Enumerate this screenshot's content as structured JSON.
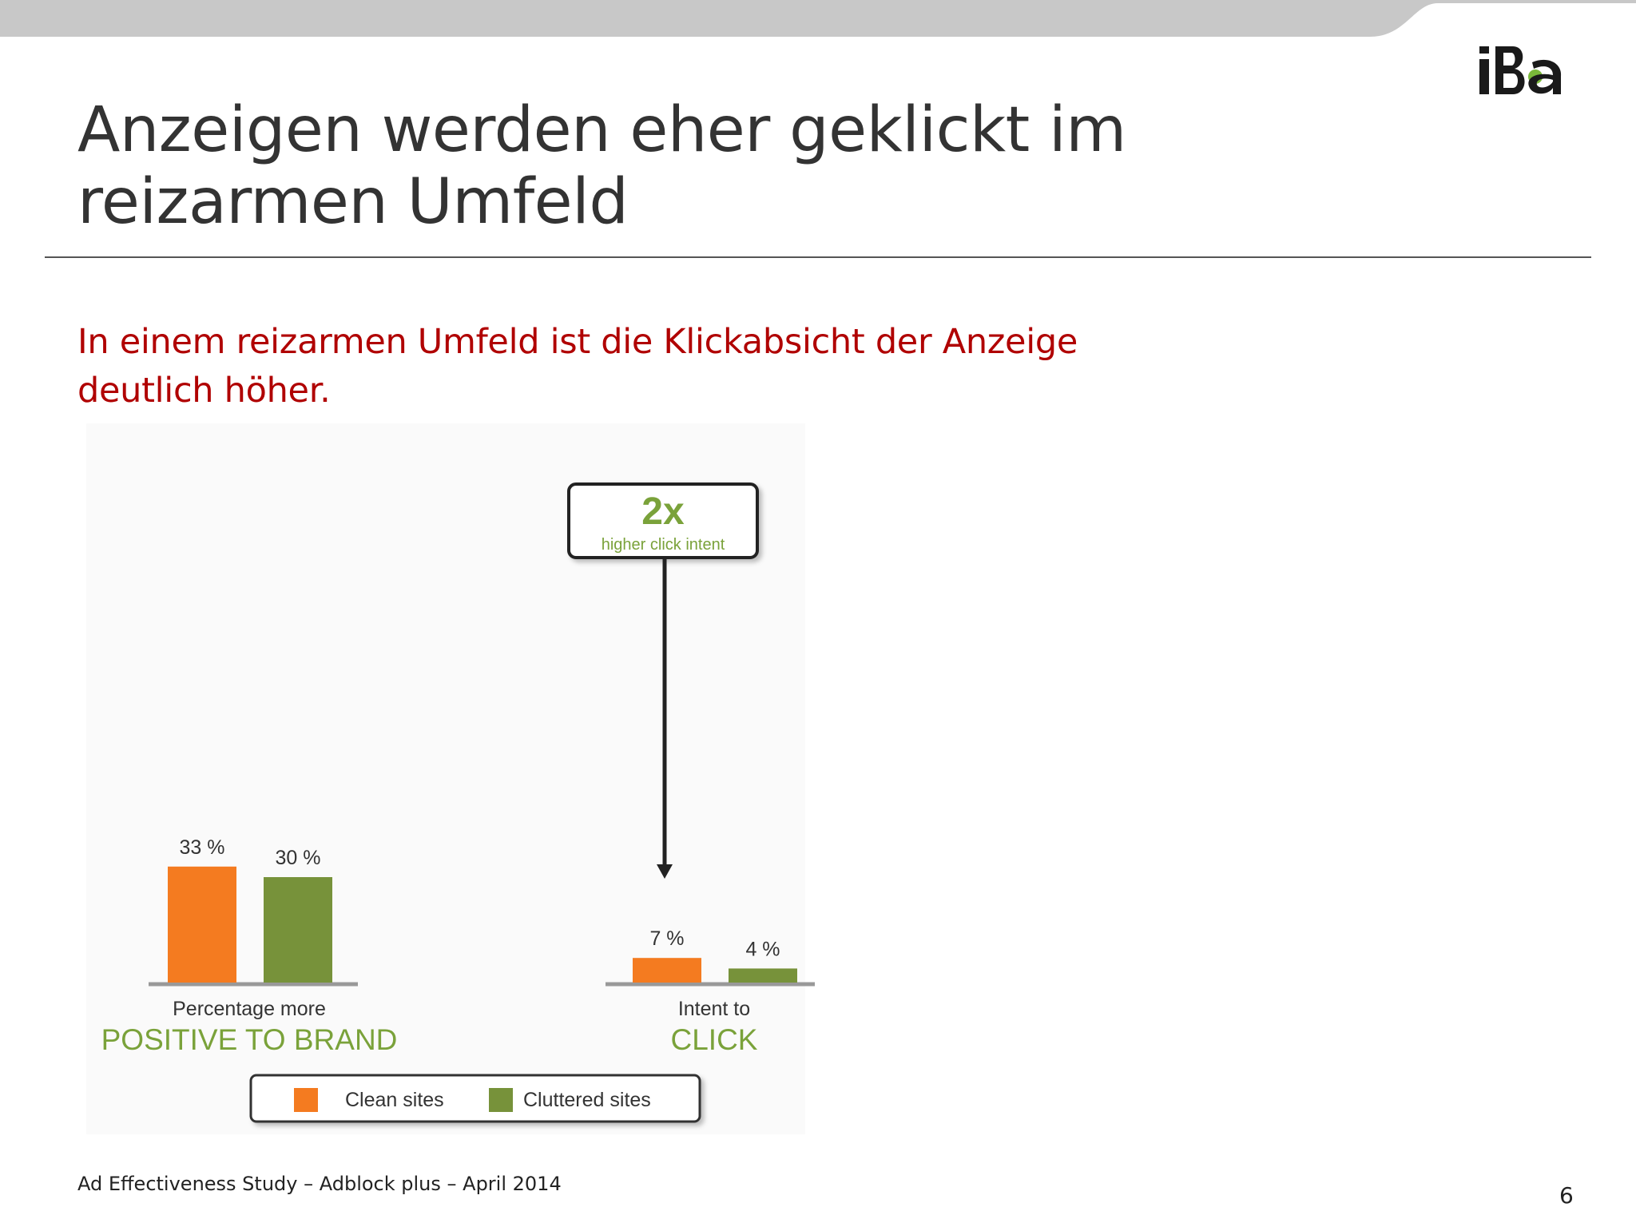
{
  "slide": {
    "title": "Anzeigen werden eher geklickt im reizarmen Umfeld",
    "subtitle": "In einem reizarmen Umfeld ist die Klickabsicht der Anzeige deutlich höher.",
    "footer": "Ad Effectiveness Study – Adblock plus – April 2014",
    "page_number": "6",
    "logo_text": "IBa"
  },
  "colors": {
    "clean": "#f47b20",
    "cluttered": "#77923a",
    "accent_green": "#7aa23a",
    "subtitle_red": "#b00000"
  },
  "chart_data": {
    "type": "bar",
    "groups": [
      {
        "label_top": "Percentage more",
        "label_main": "POSITIVE TO BRAND"
      },
      {
        "label_top": "Intent to",
        "label_main": "CLICK"
      }
    ],
    "series": [
      {
        "name": "Clean sites",
        "values": [
          33,
          7
        ],
        "labels": [
          "33 %",
          "7 %"
        ]
      },
      {
        "name": "Cluttered sites",
        "values": [
          30,
          4
        ],
        "labels": [
          "30 %",
          "4 %"
        ]
      }
    ],
    "callout": {
      "value": "2x",
      "text": "higher click intent"
    },
    "legend_position": "bottom-center"
  }
}
